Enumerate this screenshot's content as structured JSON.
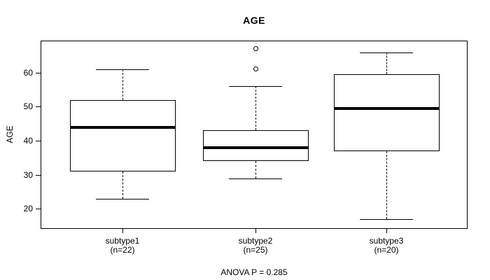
{
  "title": "AGE",
  "y_axis": {
    "label": "AGE",
    "ticks": [
      20,
      30,
      40,
      50,
      60
    ]
  },
  "x_axis": {
    "groups": [
      {
        "label": "subtype1",
        "sublabel": "(n=22)"
      },
      {
        "label": "subtype2",
        "sublabel": "(n=25)"
      },
      {
        "label": "subtype3",
        "sublabel": "(n=20)"
      }
    ]
  },
  "annotation": "ANOVA P = 0.285",
  "colors": {
    "line": "#000000",
    "box_fill": "#ffffff",
    "background": "#ffffff",
    "text": "#000000"
  },
  "chart_data": {
    "type": "boxplot",
    "title": "AGE",
    "ylabel": "AGE",
    "xlabel": "",
    "ylim": [
      14.3,
      69.2
    ],
    "yticks": [
      20,
      30,
      40,
      50,
      60
    ],
    "grid": false,
    "categories": [
      "subtype1 (n=22)",
      "subtype2 (n=25)",
      "subtype3 (n=20)"
    ],
    "series": [
      {
        "name": "subtype1",
        "n": 22,
        "whisker_low": 23,
        "q1": 31,
        "median": 44,
        "q3": 52,
        "whisker_high": 61,
        "outliers": []
      },
      {
        "name": "subtype2",
        "n": 25,
        "whisker_low": 29,
        "q1": 34,
        "median": 38,
        "q3": 43,
        "whisker_high": 56,
        "outliers": [
          61,
          67
        ]
      },
      {
        "name": "subtype3",
        "n": 20,
        "whisker_low": 17,
        "q1": 37,
        "median": 49.5,
        "q3": 59.5,
        "whisker_high": 66,
        "outliers": []
      }
    ],
    "annotation": "ANOVA P = 0.285"
  }
}
